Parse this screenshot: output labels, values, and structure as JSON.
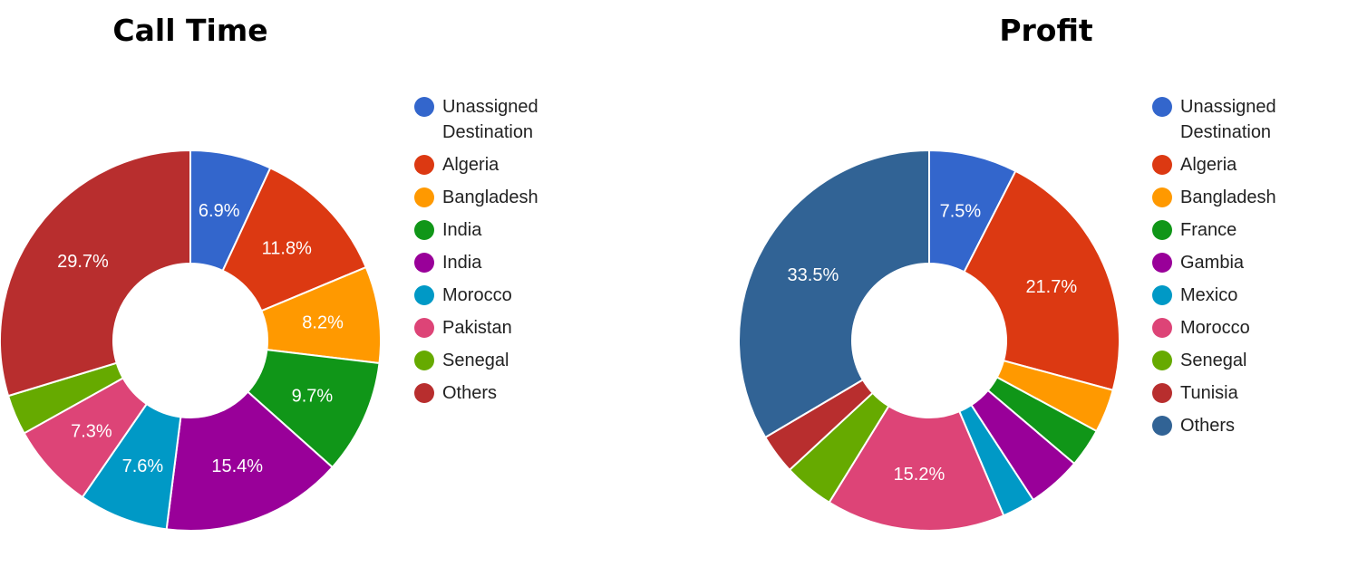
{
  "chart_data": [
    {
      "type": "pie",
      "style": "donut",
      "title": "Call Time",
      "legend_position": "right",
      "categories": [
        "Unassigned Destination",
        "Algeria",
        "Bangladesh",
        "India",
        "India",
        "Morocco",
        "Pakistan",
        "Senegal",
        "Others"
      ],
      "values": [
        6.9,
        11.8,
        8.2,
        9.7,
        15.4,
        7.6,
        7.3,
        3.4,
        29.7
      ],
      "slice_labels": [
        "6.9%",
        "11.8%",
        "8.2%",
        "9.7%",
        "15.4%",
        "7.6%",
        "7.3%",
        "",
        "29.7%"
      ],
      "colors": [
        "#3366cc",
        "#dc3912",
        "#ff9900",
        "#109618",
        "#990099",
        "#0099c6",
        "#dd4477",
        "#66aa00",
        "#b82e2e"
      ]
    },
    {
      "type": "pie",
      "style": "donut",
      "title": "Profit",
      "legend_position": "right",
      "categories": [
        "Unassigned Destination",
        "Algeria",
        "Bangladesh",
        "France",
        "Gambia",
        "Mexico",
        "Morocco",
        "Senegal",
        "Tunisia",
        "Others"
      ],
      "values": [
        7.5,
        21.7,
        3.7,
        3.3,
        4.6,
        2.8,
        15.2,
        4.3,
        3.4,
        33.5
      ],
      "slice_labels": [
        "7.5%",
        "21.7%",
        "",
        "",
        "",
        "",
        "15.2%",
        "",
        "",
        "33.5%"
      ],
      "colors": [
        "#3366cc",
        "#dc3912",
        "#ff9900",
        "#109618",
        "#990099",
        "#0099c6",
        "#dd4477",
        "#66aa00",
        "#b82e2e",
        "#316395"
      ]
    }
  ]
}
